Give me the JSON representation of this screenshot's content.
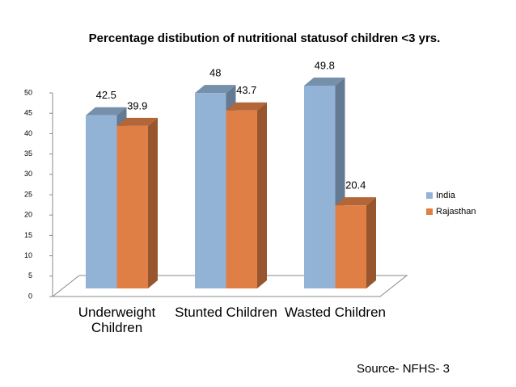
{
  "chart_data": {
    "type": "bar3d",
    "title": "Percentage distibution of nutritional statusof  children <3 yrs.",
    "categories": [
      "Underweight Children",
      "Stunted Children",
      "Wasted Children"
    ],
    "series": [
      {
        "name": "India",
        "color": "#93b3d6",
        "values": [
          42.5,
          48,
          49.8
        ]
      },
      {
        "name": "Rajasthan",
        "color": "#e07f45",
        "values": [
          39.9,
          43.7,
          20.4
        ]
      }
    ],
    "ylim": [
      0,
      50
    ],
    "yticks": [
      0,
      5,
      10,
      15,
      20,
      25,
      30,
      35,
      40,
      45,
      50
    ],
    "legend": "right",
    "source": "Source- NFHS- 3"
  }
}
